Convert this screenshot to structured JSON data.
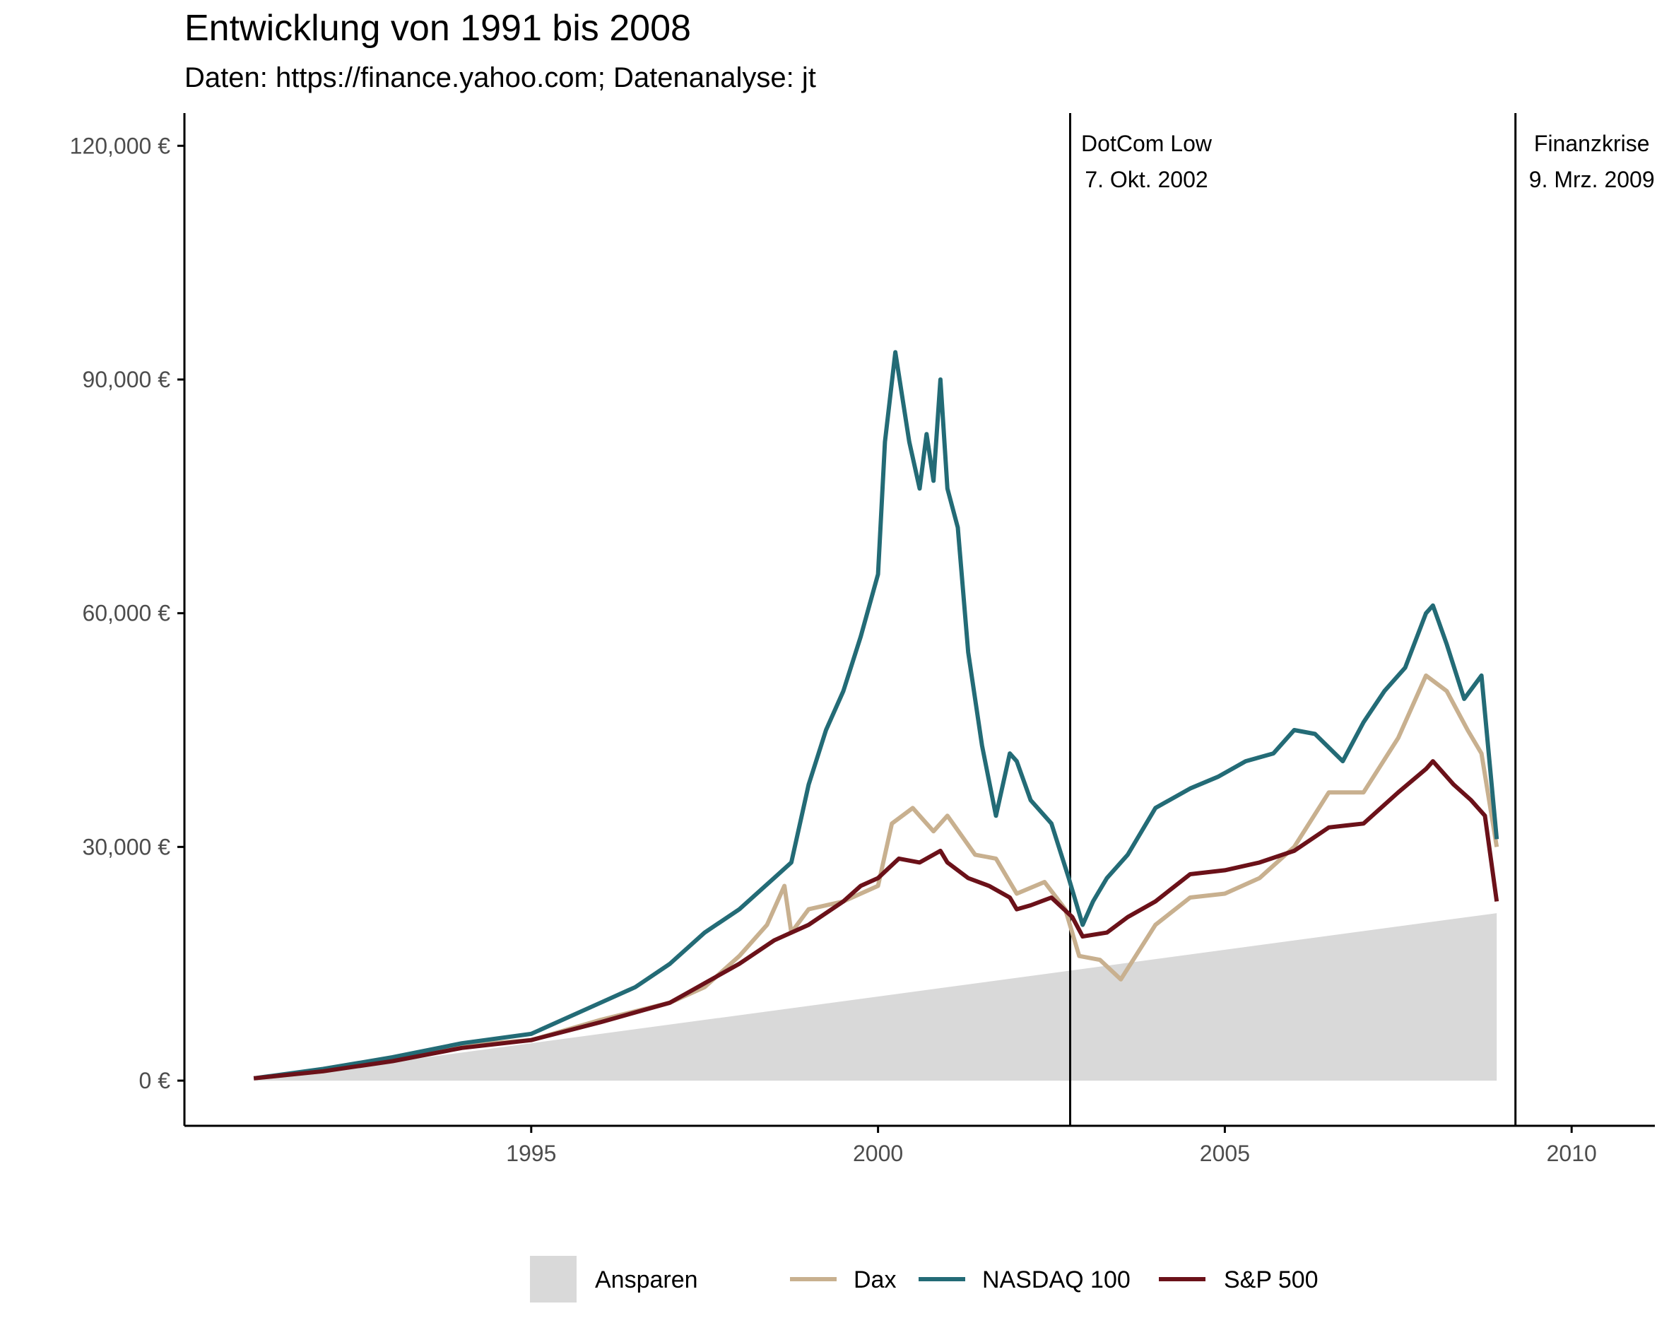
{
  "title": "Entwicklung von 1991 bis 2008",
  "subtitle": "Daten: https://finance.yahoo.com; Datenanalyse: jt",
  "colors": {
    "ansparen": "#d9d9d9",
    "dax": "#c8b08f",
    "nasdaq": "#236b76",
    "sp500": "#6b1119",
    "axis": "#000000",
    "tick_label": "#4d4d4d"
  },
  "chart_data": {
    "type": "line",
    "title": "Entwicklung von 1991 bis 2008",
    "subtitle": "Daten: https://finance.yahoo.com; Datenanalyse: jt",
    "xlabel": "",
    "ylabel": "",
    "xlim": [
      1990.0,
      2011.2
    ],
    "ylim": [
      -5800,
      124200
    ],
    "x_ticks": [
      1995,
      2000,
      2005,
      2010
    ],
    "x_tick_labels": [
      "1995",
      "2000",
      "2005",
      "2010"
    ],
    "y_ticks": [
      0,
      30000,
      60000,
      90000,
      120000
    ],
    "y_tick_labels": [
      "0 €",
      "30,000 €",
      "60,000 €",
      "90,000 €",
      "120,000 €"
    ],
    "grid": false,
    "legend_position": "bottom",
    "area": {
      "name": "Ansparen",
      "x": [
        1991.0,
        2008.92
      ],
      "values": [
        0,
        21500
      ]
    },
    "series": [
      {
        "name": "Dax",
        "color": "#c8b08f",
        "x": [
          1991.0,
          1992.0,
          1993.0,
          1994.0,
          1995.0,
          1996.0,
          1997.0,
          1997.5,
          1998.0,
          1998.4,
          1998.65,
          1998.75,
          1999.0,
          1999.5,
          2000.0,
          2000.2,
          2000.5,
          2000.8,
          2001.0,
          2001.4,
          2001.7,
          2002.0,
          2002.4,
          2002.7,
          2002.9,
          2003.2,
          2003.5,
          2004.0,
          2004.5,
          2005.0,
          2005.5,
          2006.0,
          2006.5,
          2007.0,
          2007.5,
          2007.9,
          2008.2,
          2008.5,
          2008.7,
          2008.92
        ],
        "values": [
          300,
          1200,
          2600,
          4500,
          5200,
          7800,
          10000,
          12000,
          16000,
          20000,
          25000,
          19000,
          22000,
          23000,
          25000,
          33000,
          35000,
          32000,
          34000,
          29000,
          28500,
          24000,
          25500,
          22000,
          16000,
          15500,
          13000,
          20000,
          23500,
          24000,
          26000,
          30000,
          37000,
          37000,
          44000,
          52000,
          50000,
          45000,
          42000,
          30000
        ]
      },
      {
        "name": "NASDAQ 100",
        "color": "#236b76",
        "x": [
          1991.0,
          1992.0,
          1993.0,
          1994.0,
          1995.0,
          1996.0,
          1996.5,
          1997.0,
          1997.5,
          1998.0,
          1998.5,
          1998.75,
          1999.0,
          1999.25,
          1999.5,
          1999.75,
          2000.0,
          2000.1,
          2000.25,
          2000.45,
          2000.6,
          2000.7,
          2000.8,
          2000.9,
          2001.0,
          2001.15,
          2001.3,
          2001.5,
          2001.7,
          2001.9,
          2002.0,
          2002.2,
          2002.5,
          2002.75,
          2002.95,
          2003.1,
          2003.3,
          2003.6,
          2004.0,
          2004.5,
          2004.9,
          2005.3,
          2005.7,
          2006.0,
          2006.3,
          2006.7,
          2007.0,
          2007.3,
          2007.6,
          2007.9,
          2008.0,
          2008.2,
          2008.45,
          2008.7,
          2008.92
        ],
        "values": [
          300,
          1500,
          3000,
          4800,
          6000,
          10000,
          12000,
          15000,
          19000,
          22000,
          26000,
          28000,
          38000,
          45000,
          50000,
          57000,
          65000,
          82000,
          93500,
          82000,
          76000,
          83000,
          77000,
          90000,
          76000,
          71000,
          55000,
          43000,
          34000,
          42000,
          41000,
          36000,
          33000,
          26000,
          20000,
          23000,
          26000,
          29000,
          35000,
          37500,
          39000,
          41000,
          42000,
          45000,
          44500,
          41000,
          46000,
          50000,
          53000,
          60000,
          61000,
          56000,
          49000,
          52000,
          31000
        ]
      },
      {
        "name": "S&P 500",
        "color": "#6b1119",
        "x": [
          1991.0,
          1992.0,
          1993.0,
          1994.0,
          1995.0,
          1996.0,
          1997.0,
          1997.5,
          1998.0,
          1998.5,
          1998.75,
          1999.0,
          1999.5,
          1999.75,
          2000.0,
          2000.3,
          2000.6,
          2000.9,
          2001.0,
          2001.3,
          2001.6,
          2001.9,
          2002.0,
          2002.2,
          2002.5,
          2002.8,
          2002.95,
          2003.3,
          2003.6,
          2004.0,
          2004.5,
          2005.0,
          2005.5,
          2006.0,
          2006.5,
          2007.0,
          2007.5,
          2007.9,
          2008.0,
          2008.3,
          2008.55,
          2008.75,
          2008.92
        ],
        "values": [
          300,
          1200,
          2500,
          4200,
          5200,
          7500,
          10000,
          12500,
          15000,
          18000,
          19000,
          20000,
          23000,
          25000,
          26000,
          28500,
          28000,
          29500,
          28000,
          26000,
          25000,
          23500,
          22000,
          22500,
          23500,
          21000,
          18500,
          19000,
          21000,
          23000,
          26500,
          27000,
          28000,
          29500,
          32500,
          33000,
          37000,
          40000,
          41000,
          38000,
          36000,
          34000,
          23000
        ]
      }
    ],
    "annotations": [
      {
        "x": 2002.77,
        "line1": "DotCom Low",
        "line2": "7. Okt. 2002"
      },
      {
        "x": 2009.19,
        "line1": "Finanzkrise",
        "line2": "9. Mrz. 2009"
      }
    ],
    "legend": [
      "Ansparen",
      "Dax",
      "NASDAQ 100",
      "S&P 500"
    ]
  }
}
